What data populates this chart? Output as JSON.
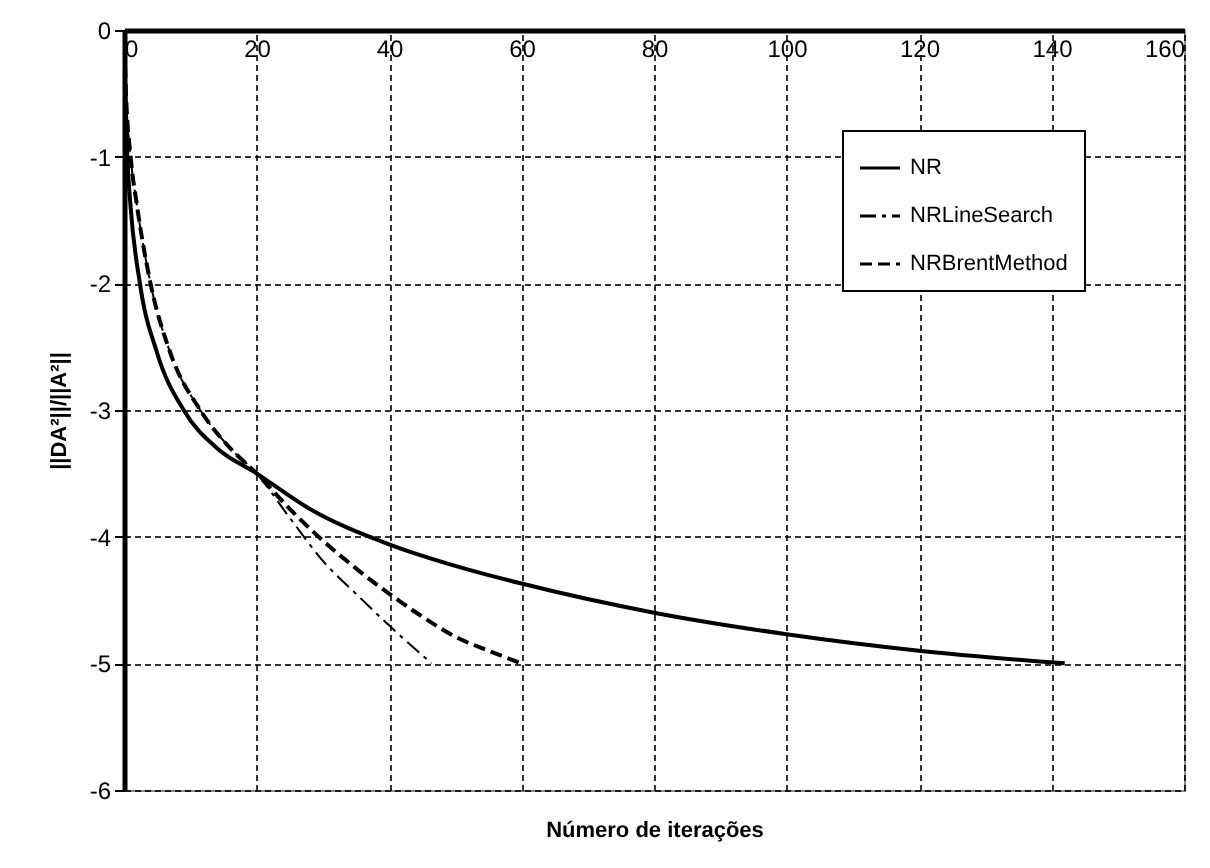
{
  "chart_data": {
    "type": "line",
    "xlabel": "Número de iterações",
    "ylabel": "||DA²||/||A²||",
    "xlim": [
      0,
      160
    ],
    "ylim": [
      -6,
      0
    ],
    "xticks": [
      0,
      20,
      40,
      60,
      80,
      100,
      120,
      140,
      160
    ],
    "yticks": [
      0,
      -1,
      -2,
      -3,
      -4,
      -5,
      -6
    ],
    "grid": true,
    "legend": "top right",
    "marker": "none",
    "series": [
      {
        "name": "NR",
        "color": "#000000",
        "line_style": "solid",
        "x": [
          0,
          0.2,
          0.5,
          1,
          2.4,
          5,
          9,
          14,
          20,
          28,
          40,
          50,
          60,
          80,
          100,
          120,
          142
        ],
        "values": [
          0,
          -0.5,
          -1,
          -1.4,
          -2,
          -2.55,
          -3,
          -3.3,
          -3.5,
          -3.78,
          -4.06,
          -4.23,
          -4.37,
          -4.6,
          -4.77,
          -4.9,
          -5
        ]
      },
      {
        "name": "NRLineSearch",
        "color": "#000000",
        "line_style": "dashdot",
        "x": [
          0,
          0.3,
          1,
          2,
          4,
          7,
          11.5,
          16,
          20,
          25,
          30,
          35,
          40,
          46.4
        ],
        "values": [
          0,
          -0.5,
          -1,
          -1.4,
          -2,
          -2.55,
          -3,
          -3.3,
          -3.5,
          -3.85,
          -4.19,
          -4.45,
          -4.7,
          -5
        ]
      },
      {
        "name": "NRBrentMethod",
        "color": "#000000",
        "line_style": "dashed",
        "x": [
          0,
          0.3,
          1,
          2,
          4,
          7,
          11.5,
          16,
          20,
          25,
          30,
          35,
          40,
          45,
          50,
          55,
          60
        ],
        "values": [
          0,
          -0.5,
          -1,
          -1.4,
          -2,
          -2.55,
          -3,
          -3.3,
          -3.5,
          -3.78,
          -4.03,
          -4.25,
          -4.45,
          -4.63,
          -4.79,
          -4.9,
          -5
        ]
      }
    ]
  }
}
